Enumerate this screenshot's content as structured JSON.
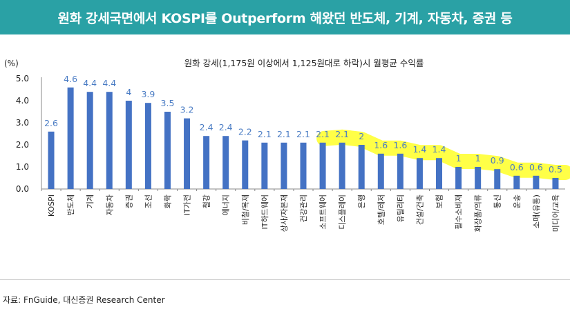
{
  "header": {
    "title": "원화 강세국면에서 KOSPI를 Outperform 해왔던 반도체, 기계, 자동차, 증권 등"
  },
  "source": "자료: FnGuide, 대신증권 Research Center",
  "chart_data": {
    "type": "bar",
    "title": "원화 강세(1,175원 이상에서 1,125원대로 하락)시 월평균 수익률",
    "ylabel": "(%)",
    "ylim": [
      0,
      5
    ],
    "yticks": [
      "0.0",
      "1.0",
      "2.0",
      "3.0",
      "4.0",
      "5.0"
    ],
    "grid": false,
    "categories": [
      "KOSPI",
      "반도체",
      "기계",
      "자동차",
      "증권",
      "조선",
      "화학",
      "IT가전",
      "철강",
      "에너지",
      "비철/목재",
      "IT하드웨어",
      "상사/자본재",
      "건강관리",
      "소프트웨어",
      "디스플레이",
      "은행",
      "호텔/레저",
      "유틸리티",
      "건설/건축",
      "보험",
      "필수소비재",
      "화장품/의류",
      "통신",
      "운송",
      "소매(유통)",
      "미디어/교육"
    ],
    "values": [
      2.6,
      4.6,
      4.4,
      4.4,
      4,
      3.9,
      3.5,
      3.2,
      2.4,
      2.4,
      2.2,
      2.1,
      2.1,
      2.1,
      2.1,
      2.1,
      2,
      1.6,
      1.6,
      1.4,
      1.4,
      1,
      1,
      0.9,
      0.6,
      0.6,
      0.5
    ],
    "value_labels": [
      "2.6",
      "4.6",
      "4.4",
      "4.4",
      "4",
      "3.9",
      "3.5",
      "3.2",
      "2.4",
      "2.4",
      "2.2",
      "2.1",
      "2.1",
      "2.1",
      "2.1",
      "2.1",
      "2",
      "1.6",
      "1.6",
      "1.4",
      "1.4",
      "1",
      "1",
      "0.9",
      "0.6",
      "0.6",
      "0.5"
    ],
    "bar_color": "#4472c4",
    "label_color": "#4a7cc4",
    "highlight_color": "#ffff33"
  }
}
